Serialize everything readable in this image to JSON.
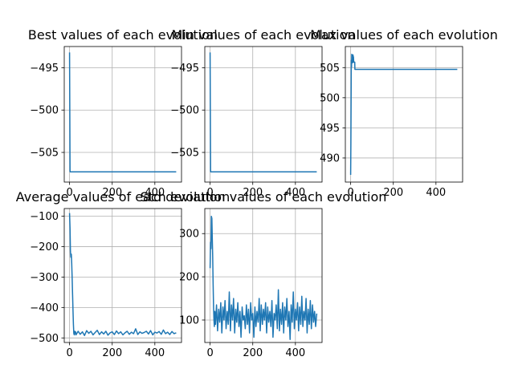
{
  "figure": {
    "background": "#ffffff",
    "line_color": "#1f77b4",
    "grid_color": "#b0b0b0"
  },
  "chart_data": [
    {
      "type": "line",
      "title": "Best values of each evolution",
      "xlim": [
        -25,
        525
      ],
      "ylim": [
        -508.5,
        -492.5
      ],
      "xticks": [
        0,
        200,
        400
      ],
      "xtick_labels": [
        "0",
        "200",
        "400"
      ],
      "yticks": [
        -495,
        -500,
        -505
      ],
      "ytick_labels": [
        "−495",
        "−500",
        "−505"
      ],
      "grid": true,
      "series": [
        {
          "x": [
            0,
            1,
            2,
            3,
            500
          ],
          "y": [
            -493.2,
            -500,
            -507.2,
            -507.3,
            -507.3
          ]
        }
      ]
    },
    {
      "type": "line",
      "title": "Min values of each evolution",
      "xlim": [
        -25,
        525
      ],
      "ylim": [
        -508.5,
        -492.5
      ],
      "xticks": [
        0,
        200,
        400
      ],
      "xtick_labels": [
        "0",
        "200",
        "400"
      ],
      "yticks": [
        -495,
        -500,
        -505
      ],
      "ytick_labels": [
        "−495",
        "−500",
        "−505"
      ],
      "grid": true,
      "series": [
        {
          "x": [
            0,
            1,
            2,
            3,
            500
          ],
          "y": [
            -493.2,
            -500,
            -507.2,
            -507.3,
            -507.3
          ]
        }
      ]
    },
    {
      "type": "line",
      "title": "Max values of each evolution",
      "xlim": [
        -25,
        525
      ],
      "ylim": [
        486,
        508.5
      ],
      "xticks": [
        0,
        200,
        400
      ],
      "xtick_labels": [
        "0",
        "200",
        "400"
      ],
      "yticks": [
        490,
        495,
        500,
        505
      ],
      "ytick_labels": [
        "490",
        "495",
        "500",
        "505"
      ],
      "grid": true,
      "series": [
        {
          "x": [
            0,
            1,
            2,
            3,
            4,
            5,
            6,
            7,
            8,
            9,
            10,
            11,
            12,
            13,
            14,
            15,
            16,
            17,
            18,
            19,
            20,
            21,
            500
          ],
          "y": [
            487.2,
            492.5,
            500.5,
            506.2,
            505.1,
            507.2,
            506.0,
            507.0,
            505.8,
            507.1,
            506.2,
            507.1,
            505.9,
            506.8,
            506.0,
            506.0,
            505.9,
            505.9,
            505.8,
            505.9,
            504.7,
            504.7,
            504.7
          ]
        }
      ]
    },
    {
      "type": "line",
      "title": "Average values of each evolution",
      "xlim": [
        -25,
        525
      ],
      "ylim": [
        -515,
        -75
      ],
      "xticks": [
        0,
        200,
        400
      ],
      "xtick_labels": [
        "0",
        "200",
        "400"
      ],
      "yticks": [
        -100,
        -200,
        -300,
        -400,
        -500
      ],
      "ytick_labels": [
        "−100",
        "−200",
        "−300",
        "−400",
        "−500"
      ],
      "grid": true,
      "series": [
        {
          "x": [
            0,
            2,
            4,
            6,
            8,
            10,
            12,
            14,
            16,
            18,
            20,
            22,
            24,
            26,
            28,
            30,
            40,
            50,
            60,
            70,
            80,
            90,
            100,
            110,
            120,
            130,
            140,
            150,
            160,
            170,
            180,
            190,
            200,
            210,
            220,
            230,
            240,
            250,
            260,
            270,
            280,
            290,
            300,
            310,
            320,
            330,
            340,
            350,
            360,
            370,
            380,
            390,
            400,
            410,
            420,
            430,
            440,
            450,
            460,
            470,
            480,
            490,
            500
          ],
          "y": [
            -90,
            -140,
            -215,
            -235,
            -225,
            -255,
            -300,
            -360,
            -410,
            -455,
            -485,
            -490,
            -478,
            -485,
            -480,
            -490,
            -478,
            -488,
            -480,
            -492,
            -476,
            -485,
            -478,
            -490,
            -482,
            -475,
            -489,
            -480,
            -487,
            -478,
            -491,
            -483,
            -480,
            -489,
            -477,
            -486,
            -480,
            -490,
            -483,
            -478,
            -488,
            -481,
            -486,
            -470,
            -489,
            -480,
            -485,
            -482,
            -478,
            -487,
            -476,
            -490,
            -481,
            -484,
            -479,
            -488,
            -474,
            -486,
            -481,
            -489,
            -479,
            -486,
            -483
          ]
        }
      ]
    },
    {
      "type": "line",
      "title": "Std deviation values of each evolution",
      "xlim": [
        -25,
        525
      ],
      "ylim": [
        48,
        358
      ],
      "xticks": [
        0,
        200,
        400
      ],
      "xtick_labels": [
        "0",
        "200",
        "400"
      ],
      "yticks": [
        100,
        200,
        300
      ],
      "ytick_labels": [
        "100",
        "200",
        "300"
      ],
      "grid": true,
      "series": [
        {
          "x": [
            0,
            2,
            4,
            6,
            8,
            10,
            12,
            14,
            16,
            18,
            20,
            22,
            25,
            30,
            35,
            40,
            45,
            50,
            55,
            60,
            65,
            70,
            75,
            80,
            85,
            90,
            95,
            100,
            105,
            110,
            115,
            120,
            125,
            130,
            135,
            140,
            145,
            150,
            155,
            160,
            165,
            170,
            175,
            180,
            185,
            190,
            195,
            200,
            205,
            210,
            215,
            220,
            225,
            230,
            235,
            240,
            245,
            250,
            255,
            260,
            265,
            270,
            275,
            280,
            285,
            290,
            295,
            300,
            305,
            310,
            315,
            320,
            325,
            330,
            335,
            340,
            345,
            350,
            355,
            360,
            365,
            370,
            375,
            380,
            385,
            390,
            395,
            400,
            405,
            410,
            415,
            420,
            425,
            430,
            435,
            440,
            445,
            450,
            455,
            460,
            465,
            470,
            475,
            480,
            485,
            490,
            495,
            500
          ],
          "y": [
            220,
            280,
            265,
            340,
            335,
            290,
            250,
            180,
            130,
            100,
            85,
            120,
            90,
            135,
            75,
            125,
            95,
            140,
            70,
            130,
            100,
            145,
            80,
            120,
            90,
            165,
            75,
            135,
            100,
            150,
            70,
            125,
            95,
            140,
            85,
            120,
            60,
            130,
            100,
            110,
            80,
            135,
            90,
            125,
            70,
            140,
            100,
            115,
            60,
            130,
            85,
            120,
            95,
            150,
            75,
            135,
            90,
            125,
            100,
            140,
            70,
            130,
            95,
            120,
            85,
            145,
            60,
            115,
            100,
            135,
            80,
            170,
            75,
            125,
            90,
            140,
            70,
            130,
            100,
            150,
            85,
            120,
            55,
            135,
            95,
            165,
            80,
            125,
            100,
            140,
            75,
            130,
            90,
            155,
            85,
            120,
            100,
            150,
            70,
            125,
            90,
            145,
            80,
            135,
            95,
            120,
            85,
            115
          ]
        }
      ]
    }
  ]
}
